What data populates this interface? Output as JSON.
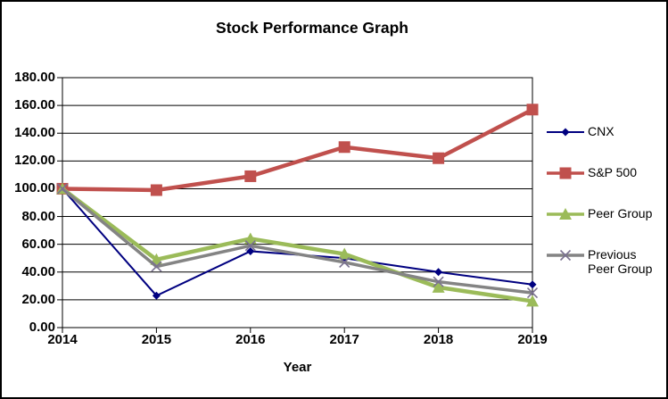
{
  "figure": {
    "background": "#FFFFFF",
    "border_color": "#000000"
  },
  "chart_data": {
    "type": "line",
    "title": "Stock Performance Graph",
    "xlabel": "Year",
    "ylabel": "",
    "categories": [
      "2014",
      "2015",
      "2016",
      "2017",
      "2018",
      "2019"
    ],
    "y_ticks": [
      "180.00",
      "160.00",
      "140.00",
      "120.00",
      "100.00",
      "80.00",
      "60.00",
      "40.00",
      "20.00",
      "0.00"
    ],
    "ylim": [
      0,
      180
    ],
    "grid": "horizontal",
    "gridline_color": "#000000",
    "legend_position": "right",
    "series": [
      {
        "name": "CNX",
        "color": "#000080",
        "marker": "diamond",
        "marker_color": "#000080",
        "line_width": 2,
        "values": [
          100,
          23,
          55,
          50,
          40,
          31
        ]
      },
      {
        "name": "S&P 500",
        "color": "#C0504D",
        "marker": "square",
        "marker_color": "#C0504D",
        "line_width": 4.5,
        "values": [
          100,
          99,
          109,
          130,
          122,
          157
        ]
      },
      {
        "name": "Peer Group",
        "color": "#9BBB59",
        "marker": "triangle",
        "marker_color": "#9BBB59",
        "line_width": 4.5,
        "values": [
          100,
          49,
          64,
          53,
          29,
          19
        ]
      },
      {
        "name": "Previous Peer Group",
        "color": "#848484",
        "marker": "x",
        "marker_color": "#7A7190",
        "line_width": 3.5,
        "values": [
          100,
          44,
          59,
          47,
          33,
          25
        ]
      }
    ]
  }
}
